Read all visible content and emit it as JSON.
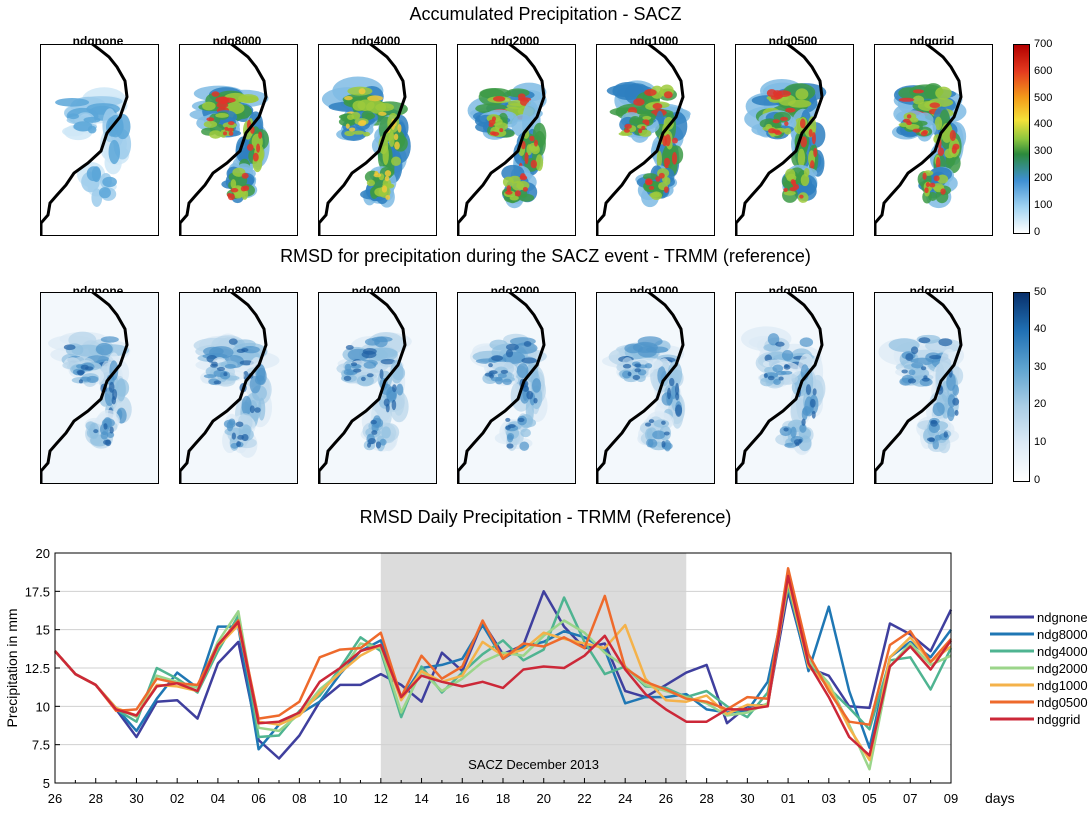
{
  "top_title": "Accumulated Precipitation - SACZ",
  "mid_title": "RMSD for precipitation during the SACZ event - TRMM (reference)",
  "bottom_title": "RMSD Daily Precipitation - TRMM (Reference)",
  "panels": [
    "ndgnone",
    "ndg8000",
    "ndg4000",
    "ndg2000",
    "ndg1000",
    "ndg0500",
    "ndggrid"
  ],
  "colorbar_accum": {
    "ticks": [
      "700",
      "600",
      "500",
      "400",
      "300",
      "200",
      "100",
      "0"
    ],
    "colormap": "jet-like",
    "low": "#ffffff",
    "high": "#b30000"
  },
  "colorbar_rmsd": {
    "ticks": [
      "50",
      "40",
      "30",
      "20",
      "10",
      "0"
    ],
    "colormap": "blues",
    "low": "#ffffff",
    "high": "#08306b"
  },
  "chart_data": {
    "type": "line",
    "title": "RMSD Daily Precipitation - TRMM (Reference)",
    "ylabel": "Precipitation in mm",
    "xlabel": "days",
    "ylim": [
      5,
      20
    ],
    "yticks": [
      "5",
      "7.5",
      "10",
      "12.5",
      "15",
      "17.5",
      "20"
    ],
    "x_tick_labels": [
      "26",
      "28",
      "30",
      "02",
      "04",
      "06",
      "08",
      "10",
      "12",
      "14",
      "16",
      "18",
      "20",
      "22",
      "24",
      "26",
      "28",
      "30",
      "01",
      "03",
      "05",
      "07",
      "09"
    ],
    "grid": true,
    "shaded_region": {
      "from_index": 16,
      "to_index": 31,
      "label": "SACZ December 2013",
      "color": "#dcdcdc"
    },
    "legend_position": "right",
    "series": [
      {
        "name": "ndgnone",
        "color": "#3f3f9e",
        "values": [
          13.6,
          12.1,
          11.4,
          9.8,
          8.0,
          10.3,
          10.4,
          9.2,
          12.8,
          14.2,
          7.8,
          6.6,
          8.1,
          10.3,
          11.4,
          11.4,
          12.1,
          11.4,
          10.3,
          13.5,
          12.3,
          15.5,
          13.4,
          14.0,
          17.5,
          15.2,
          13.8,
          14.1,
          11.0,
          10.6,
          11.4,
          12.2,
          12.7,
          8.9,
          10.0,
          10.1,
          17.5,
          12.5,
          12.0,
          10.0,
          9.9,
          15.4,
          14.7,
          13.6,
          16.3
        ]
      },
      {
        "name": "ndg8000",
        "color": "#1f77b4",
        "values": [
          13.6,
          12.1,
          11.4,
          9.9,
          8.4,
          10.5,
          12.2,
          11.2,
          15.2,
          15.2,
          7.2,
          8.8,
          9.5,
          10.3,
          12.1,
          13.6,
          14.3,
          10.5,
          12.5,
          12.7,
          13.1,
          15.3,
          13.1,
          13.9,
          14.2,
          14.9,
          14.5,
          13.7,
          10.2,
          10.6,
          10.6,
          10.8,
          9.8,
          9.6,
          9.7,
          11.6,
          17.8,
          12.3,
          16.5,
          11.0,
          7.3,
          13.2,
          14.2,
          13.2,
          15.0
        ]
      },
      {
        "name": "ndg4000",
        "color": "#4fb491",
        "values": [
          13.6,
          12.1,
          11.4,
          9.8,
          9.0,
          12.5,
          11.8,
          10.9,
          13.6,
          15.9,
          8.0,
          8.1,
          9.7,
          10.7,
          12.5,
          14.5,
          13.6,
          9.3,
          12.6,
          10.9,
          12.2,
          13.4,
          14.3,
          13.0,
          13.7,
          17.1,
          14.2,
          12.1,
          12.6,
          11.3,
          11.2,
          10.6,
          11.0,
          10.0,
          9.3,
          10.9,
          17.8,
          12.8,
          11.2,
          9.9,
          8.5,
          13.0,
          13.2,
          11.1,
          13.8
        ]
      },
      {
        "name": "ndg2000",
        "color": "#9bd58a",
        "values": [
          13.6,
          12.1,
          11.4,
          9.9,
          9.3,
          12.0,
          11.6,
          11.2,
          14.2,
          16.2,
          8.6,
          8.4,
          9.5,
          11.1,
          12.2,
          14.1,
          13.8,
          9.6,
          12.3,
          11.0,
          11.8,
          12.9,
          13.5,
          13.3,
          14.6,
          15.6,
          14.8,
          13.5,
          12.6,
          11.4,
          11.0,
          10.6,
          10.2,
          9.4,
          9.6,
          10.2,
          18.2,
          13.0,
          11.5,
          8.8,
          5.9,
          12.6,
          14.1,
          12.7,
          13.3
        ]
      },
      {
        "name": "ndg1000",
        "color": "#f4b24a",
        "values": [
          13.6,
          12.1,
          11.4,
          9.9,
          9.4,
          11.4,
          11.3,
          11.0,
          13.9,
          15.3,
          9.0,
          8.8,
          9.4,
          10.9,
          12.2,
          13.3,
          14.0,
          10.4,
          12.3,
          11.6,
          12.0,
          14.2,
          13.3,
          13.7,
          14.8,
          14.4,
          14.1,
          13.8,
          15.3,
          11.8,
          10.4,
          10.3,
          10.7,
          9.5,
          10.1,
          10.0,
          18.2,
          12.6,
          11.3,
          8.6,
          6.5,
          13.2,
          14.5,
          12.9,
          13.9
        ]
      },
      {
        "name": "ndg0500",
        "color": "#ee6a2c",
        "values": [
          13.6,
          12.1,
          11.4,
          9.7,
          9.8,
          11.8,
          11.5,
          11.4,
          14.0,
          15.6,
          9.2,
          9.4,
          10.3,
          13.2,
          13.7,
          13.8,
          14.8,
          10.6,
          13.3,
          11.8,
          12.6,
          15.6,
          13.1,
          14.1,
          13.9,
          14.5,
          13.8,
          17.2,
          12.5,
          11.6,
          11.1,
          10.5,
          10.3,
          9.8,
          10.6,
          10.5,
          19.0,
          13.4,
          11.0,
          9.0,
          8.8,
          14.0,
          14.9,
          12.9,
          14.4
        ]
      },
      {
        "name": "ndggrid",
        "color": "#cc2838",
        "values": [
          13.6,
          12.1,
          11.4,
          9.8,
          9.4,
          11.3,
          11.5,
          11.0,
          14.0,
          15.5,
          8.9,
          9.0,
          9.6,
          11.6,
          12.5,
          13.6,
          14.0,
          10.6,
          12.0,
          11.6,
          11.3,
          11.6,
          11.2,
          12.4,
          12.6,
          12.5,
          13.3,
          14.6,
          12.4,
          10.8,
          9.8,
          9.0,
          9.0,
          9.8,
          9.8,
          10.0,
          18.5,
          12.8,
          10.6,
          8.0,
          6.8,
          12.6,
          13.9,
          12.4,
          14.3
        ]
      }
    ]
  }
}
